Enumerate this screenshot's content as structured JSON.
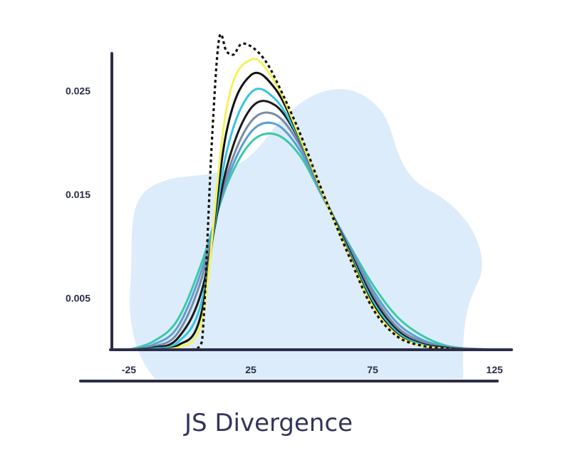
{
  "chart_data": {
    "type": "line",
    "title": "",
    "xlabel": "JS Divergence",
    "ylabel": "",
    "xlim": [
      -32,
      132
    ],
    "ylim": [
      0,
      0.0295
    ],
    "x_ticks": [
      -25,
      25,
      75,
      125
    ],
    "x_tick_labels": [
      "-25",
      "25",
      "75",
      "125"
    ],
    "y_ticks": [
      0.005,
      0.015,
      0.025
    ],
    "y_tick_labels": [
      "0.005",
      "0.015",
      "0.025"
    ],
    "grid": false,
    "legend": "none",
    "background_blob_color": "#dcecfa",
    "axis_color": "#2b2d4a",
    "series": [
      {
        "color": "#3cc9a6",
        "style": "solid",
        "x": [
          -25,
          -15,
          -5,
          5,
          15,
          25,
          35,
          45,
          55,
          65,
          75,
          85,
          95,
          105,
          115,
          125
        ],
        "y": [
          0,
          0.0008,
          0.0029,
          0.0085,
          0.0158,
          0.02,
          0.0208,
          0.0188,
          0.0145,
          0.0103,
          0.0063,
          0.0032,
          0.0014,
          0.0004,
          0.0001,
          0
        ]
      },
      {
        "color": "#5a9fd6",
        "style": "solid",
        "x": [
          -25,
          -15,
          -5,
          5,
          15,
          25,
          35,
          45,
          55,
          65,
          75,
          85,
          95,
          105,
          115,
          125
        ],
        "y": [
          0,
          0.0005,
          0.0022,
          0.0078,
          0.0162,
          0.021,
          0.0218,
          0.0193,
          0.0146,
          0.0102,
          0.0058,
          0.0026,
          0.001,
          0.0003,
          0.0001,
          0
        ]
      },
      {
        "color": "#7a8aa3",
        "style": "solid",
        "x": [
          -25,
          -15,
          -5,
          5,
          15,
          25,
          35,
          45,
          55,
          65,
          75,
          85,
          95,
          105,
          115,
          125
        ],
        "y": [
          0,
          0.0003,
          0.0016,
          0.007,
          0.0167,
          0.022,
          0.0227,
          0.0198,
          0.0147,
          0.01,
          0.0054,
          0.0022,
          0.0008,
          0.0002,
          0.0001,
          0
        ]
      },
      {
        "color": "#1a1a1a",
        "style": "solid",
        "x": [
          -25,
          -15,
          -5,
          5,
          15,
          25,
          35,
          45,
          55,
          65,
          75,
          85,
          95,
          105,
          115,
          125
        ],
        "y": [
          0,
          0.0002,
          0.0011,
          0.0058,
          0.0175,
          0.0233,
          0.0236,
          0.0202,
          0.0148,
          0.0098,
          0.005,
          0.0019,
          0.0006,
          0.0002,
          0,
          0
        ]
      },
      {
        "color": "#38c3e0",
        "style": "solid",
        "x": [
          -25,
          -15,
          -5,
          5,
          15,
          25,
          35,
          45,
          55,
          65,
          75,
          85,
          95,
          105,
          115,
          125
        ],
        "y": [
          0,
          0.0001,
          0.0007,
          0.0048,
          0.019,
          0.0248,
          0.0242,
          0.0203,
          0.0148,
          0.0096,
          0.0047,
          0.0017,
          0.0005,
          0.0001,
          0,
          0
        ]
      },
      {
        "color": "#111111",
        "style": "solid",
        "x": [
          -25,
          -15,
          -5,
          5,
          15,
          25,
          35,
          45,
          55,
          65,
          75,
          85,
          95,
          105,
          115,
          125
        ],
        "y": [
          0,
          0,
          0.0004,
          0.0038,
          0.021,
          0.0265,
          0.0252,
          0.0205,
          0.0148,
          0.0094,
          0.0044,
          0.0015,
          0.0004,
          0.0001,
          0,
          0
        ]
      },
      {
        "color": "#f4f25a",
        "style": "solid",
        "x": [
          -25,
          -15,
          -5,
          5,
          15,
          25,
          35,
          45,
          55,
          65,
          75,
          85,
          95,
          105,
          115,
          125
        ],
        "y": [
          0,
          0,
          0.0002,
          0.0028,
          0.0232,
          0.028,
          0.0258,
          0.0206,
          0.0148,
          0.0093,
          0.0042,
          0.0014,
          0.0004,
          0.0001,
          0,
          0
        ]
      },
      {
        "color": "#111111",
        "style": "dotted",
        "x": [
          -25,
          -5,
          1,
          5,
          9,
          12,
          15,
          18,
          21,
          25,
          30,
          35,
          45,
          55,
          65,
          75,
          85,
          95,
          105,
          115,
          125
        ],
        "y": [
          0,
          0,
          0,
          0.0008,
          0.02,
          0.03,
          0.0288,
          0.0285,
          0.0295,
          0.0293,
          0.0282,
          0.0262,
          0.021,
          0.0149,
          0.0092,
          0.004,
          0.0013,
          0.0004,
          0.0001,
          0,
          0
        ]
      }
    ]
  }
}
